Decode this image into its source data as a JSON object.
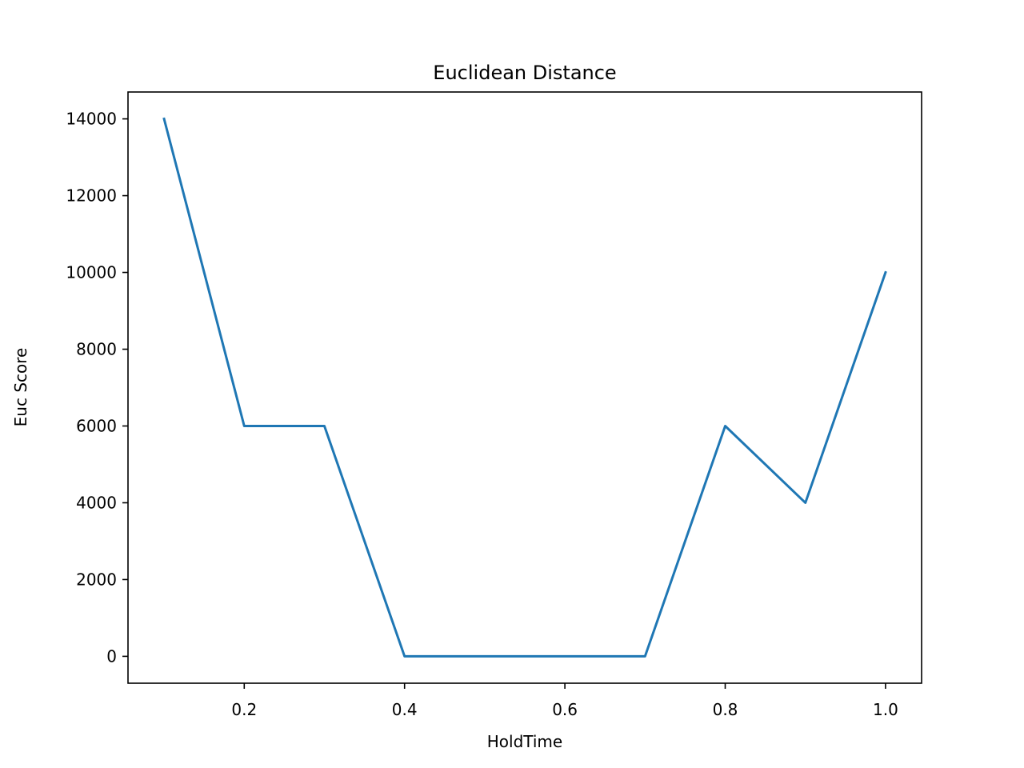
{
  "chart_data": {
    "type": "line",
    "title": "Euclidean Distance",
    "xlabel": "HoldTime",
    "ylabel": "Euc Score",
    "x": [
      0.1,
      0.2,
      0.3,
      0.4,
      0.5,
      0.6,
      0.7,
      0.8,
      0.9,
      1.0
    ],
    "series": [
      {
        "values": [
          14000,
          6000,
          6000,
          0,
          0,
          0,
          0,
          6000,
          4000,
          10000
        ],
        "color": "#1f77b4"
      }
    ],
    "xlim": [
      0.055,
      1.045
    ],
    "ylim": [
      -700,
      14700
    ],
    "xticks": [
      0.2,
      0.4,
      0.6,
      0.8,
      1.0
    ],
    "xtick_labels": [
      "0.2",
      "0.4",
      "0.6",
      "0.8",
      "1.0"
    ],
    "yticks": [
      0,
      2000,
      4000,
      6000,
      8000,
      10000,
      12000,
      14000
    ],
    "ytick_labels": [
      "0",
      "2000",
      "4000",
      "6000",
      "8000",
      "10000",
      "12000",
      "14000"
    ],
    "grid": false,
    "legend": "none"
  }
}
